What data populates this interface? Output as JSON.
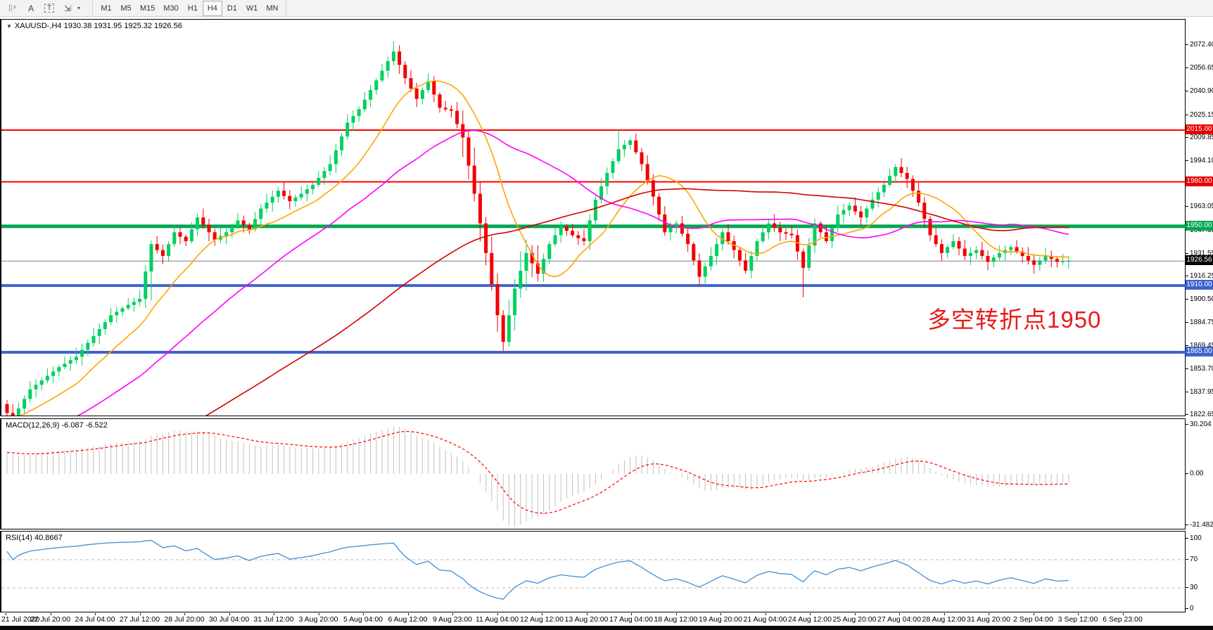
{
  "toolbar": {
    "icons": [
      {
        "name": "period-separators-icon",
        "glyph": "⣿",
        "sub": "F"
      },
      {
        "name": "text-label-icon",
        "glyph": "A"
      },
      {
        "name": "text-box-icon",
        "glyph": "T"
      },
      {
        "name": "object-arrows-icon",
        "glyph": "⇲"
      },
      {
        "name": "dropdown-caret-icon",
        "glyph": "▾"
      }
    ],
    "timeframes": [
      "M1",
      "M5",
      "M15",
      "M30",
      "H1",
      "H4",
      "D1",
      "W1",
      "MN"
    ],
    "active_timeframe": "H4"
  },
  "window": {
    "symbol_line": "XAUUSD-,H4  1930.38 1931.95 1925.32 1926.56",
    "macd_label": "MACD(12,26,9) -6.087 -6.522",
    "rsi_label": "RSI(14) 40.8667",
    "annotation_text": "多空转折点1950"
  },
  "chart_data": {
    "type": "candlestick",
    "symbol": "XAUUSD",
    "timeframe": "H4",
    "ohlc_display": {
      "open": "1930.38",
      "high": "1931.95",
      "low": "1925.32",
      "close": "1926.56"
    },
    "colors": {
      "up": "#00d060",
      "down": "#f20000",
      "ma_fast": "#ffa500",
      "ma_mid": "#ff00ff",
      "ma_slow": "#d40000",
      "hline_red": "#ff0000",
      "hline_green": "#00a651",
      "hline_blue": "#3f62cf",
      "current_line": "#808080",
      "macd_hist": "#c0c0c0",
      "macd_signal": "#ff0000",
      "rsi_line": "#3e8fd8",
      "rsi_level": "#b8b8b8"
    },
    "price_axis_ticks": [
      "2072.40",
      "2056.65",
      "2040.90",
      "2025.15",
      "2009.85",
      "1994.10",
      "1978.35",
      "1963.05",
      "1947.30",
      "1931.55",
      "1916.25",
      "1900.50",
      "1884.75",
      "1869.45",
      "1853.70",
      "1837.95",
      "1822.65"
    ],
    "price_badges": [
      {
        "label": "2015.00",
        "price": 2015.0,
        "bg": "#e60000"
      },
      {
        "label": "1980.00",
        "price": 1980.0,
        "bg": "#e60000"
      },
      {
        "label": "1950.00",
        "price": 1950.0,
        "bg": "#00a651"
      },
      {
        "label": "1926.56",
        "price": 1926.56,
        "bg": "#000000"
      },
      {
        "label": "1910.00",
        "price": 1910.0,
        "bg": "#3f62cf"
      },
      {
        "label": "1865.00",
        "price": 1865.0,
        "bg": "#3f62cf"
      }
    ],
    "hlines": [
      {
        "price": 2015.0,
        "color": "#ff0000",
        "width": 2
      },
      {
        "price": 1980.0,
        "color": "#ff0000",
        "width": 2
      },
      {
        "price": 1950.0,
        "color": "#00a651",
        "width": 5
      },
      {
        "price": 1910.0,
        "color": "#3f62cf",
        "width": 4
      },
      {
        "price": 1865.0,
        "color": "#3f62cf",
        "width": 4
      },
      {
        "price": 1926.56,
        "color": "#808080",
        "width": 1
      }
    ],
    "candles": {
      "count": 185,
      "prehistory": {
        "bars": 90,
        "from": 1660,
        "to": 1830
      },
      "close_anchors": [
        [
          0,
          1824
        ],
        [
          1,
          1819
        ],
        [
          2,
          1827
        ],
        [
          4,
          1840
        ],
        [
          6,
          1846
        ],
        [
          9,
          1855
        ],
        [
          12,
          1862
        ],
        [
          15,
          1876
        ],
        [
          18,
          1890
        ],
        [
          21,
          1897
        ],
        [
          23,
          1901
        ],
        [
          25,
          1938
        ],
        [
          27,
          1930
        ],
        [
          29,
          1946
        ],
        [
          31,
          1940
        ],
        [
          33,
          1956
        ],
        [
          36,
          1941
        ],
        [
          38,
          1946
        ],
        [
          40,
          1954
        ],
        [
          42,
          1948
        ],
        [
          44,
          1962
        ],
        [
          47,
          1974
        ],
        [
          49,
          1967
        ],
        [
          51,
          1972
        ],
        [
          53,
          1978
        ],
        [
          56,
          1992
        ],
        [
          59,
          2020
        ],
        [
          61,
          2029
        ],
        [
          63,
          2042
        ],
        [
          65,
          2055
        ],
        [
          67,
          2068
        ],
        [
          69,
          2050
        ],
        [
          71,
          2036
        ],
        [
          73,
          2048
        ],
        [
          75,
          2030
        ],
        [
          77,
          2028
        ],
        [
          79,
          2010
        ],
        [
          81,
          1972
        ],
        [
          83,
          1932
        ],
        [
          85,
          1890
        ],
        [
          86,
          1872
        ],
        [
          88,
          1908
        ],
        [
          90,
          1932
        ],
        [
          92,
          1918
        ],
        [
          94,
          1938
        ],
        [
          96,
          1950
        ],
        [
          98,
          1944
        ],
        [
          100,
          1940
        ],
        [
          102,
          1968
        ],
        [
          104,
          1986
        ],
        [
          106,
          2002
        ],
        [
          108,
          2008
        ],
        [
          110,
          1992
        ],
        [
          112,
          1970
        ],
        [
          114,
          1946
        ],
        [
          116,
          1952
        ],
        [
          118,
          1938
        ],
        [
          120,
          1916
        ],
        [
          122,
          1930
        ],
        [
          124,
          1946
        ],
        [
          126,
          1934
        ],
        [
          128,
          1920
        ],
        [
          130,
          1940
        ],
        [
          132,
          1952
        ],
        [
          134,
          1946
        ],
        [
          136,
          1944
        ],
        [
          138,
          1922
        ],
        [
          140,
          1952
        ],
        [
          142,
          1940
        ],
        [
          144,
          1958
        ],
        [
          146,
          1964
        ],
        [
          148,
          1956
        ],
        [
          150,
          1968
        ],
        [
          152,
          1978
        ],
        [
          154,
          1990
        ],
        [
          156,
          1982
        ],
        [
          158,
          1966
        ],
        [
          160,
          1944
        ],
        [
          162,
          1932
        ],
        [
          164,
          1940
        ],
        [
          166,
          1930
        ],
        [
          168,
          1934
        ],
        [
          170,
          1926
        ],
        [
          172,
          1932
        ],
        [
          174,
          1936
        ],
        [
          176,
          1930
        ],
        [
          178,
          1924
        ],
        [
          180,
          1930
        ],
        [
          182,
          1926
        ],
        [
          184,
          1926.56
        ]
      ],
      "wick_overrides": {
        "25": {
          "low": 1900
        },
        "67": {
          "high": 2075
        },
        "86": {
          "low": 1866
        },
        "106": {
          "high": 2015
        },
        "120": {
          "low": 1910
        },
        "138": {
          "low": 1902
        },
        "154": {
          "high": 1992
        }
      }
    },
    "moving_averages": [
      {
        "name": "ma-fast",
        "period": 13,
        "color": "#ffa500"
      },
      {
        "name": "ma-mid",
        "period": 36,
        "color": "#ff00ff"
      },
      {
        "name": "ma-slow",
        "period": 90,
        "color": "#d40000"
      }
    ],
    "macd": {
      "params": [
        12,
        26,
        9
      ],
      "value_main": "-6.087",
      "value_signal": "-6.522",
      "scale_ticks": [
        {
          "label": "30.204",
          "v": 30.204
        },
        {
          "label": "0.00",
          "v": 0
        },
        {
          "label": "-31.482",
          "v": -31.482
        }
      ]
    },
    "rsi": {
      "period": 14,
      "value": "40.8667",
      "levels": [
        70,
        30
      ],
      "scale_ticks": [
        {
          "label": "100",
          "v": 100
        },
        {
          "label": "70",
          "v": 70
        },
        {
          "label": "30",
          "v": 30
        },
        {
          "label": "0",
          "v": 0
        }
      ]
    },
    "time_axis_labels": [
      "21 Jul 2020",
      "22 Jul 20:00",
      "24 Jul 04:00",
      "27 Jul 12:00",
      "28 Jul 20:00",
      "30 Jul 04:00",
      "31 Jul 12:00",
      "3 Aug 20:00",
      "5 Aug 04:00",
      "6 Aug 12:00",
      "9 Aug 23:00",
      "11 Aug 04:00",
      "12 Aug 12:00",
      "13 Aug 20:00",
      "17 Aug 04:00",
      "18 Aug 12:00",
      "19 Aug 20:00",
      "21 Aug 04:00",
      "24 Aug 12:00",
      "25 Aug 20:00",
      "27 Aug 04:00",
      "28 Aug 12:00",
      "31 Aug 20:00",
      "2 Sep 04:00",
      "3 Sep 12:00",
      "6 Sep 23:00"
    ]
  }
}
